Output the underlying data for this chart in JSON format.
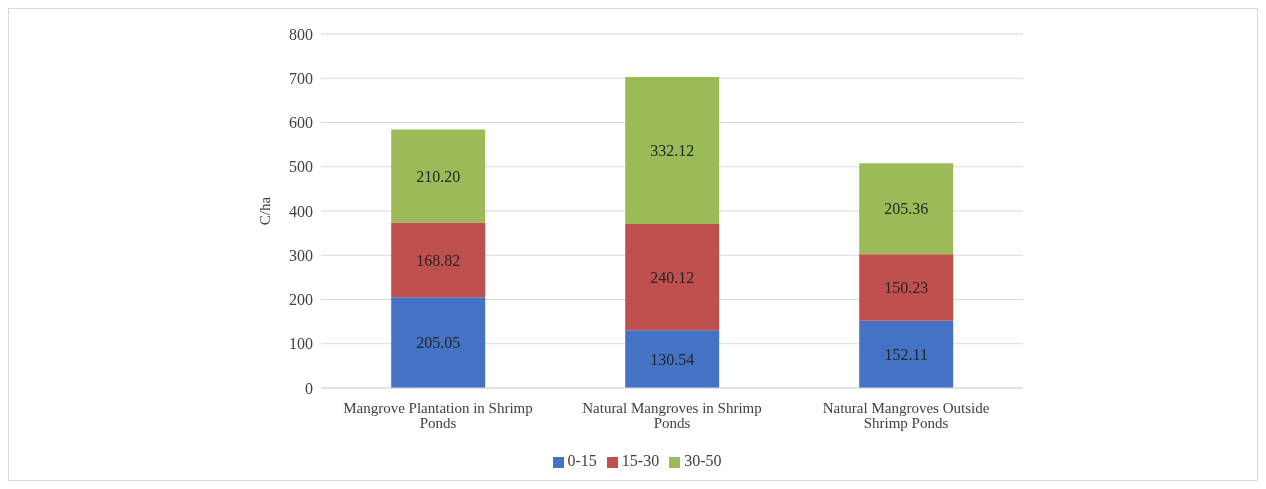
{
  "chart_data": {
    "type": "bar",
    "stacked": true,
    "ylabel": "C/ha",
    "categories": [
      "Mangrove Plantation in Shrimp Ponds",
      "Natural Mangroves in Shrimp Ponds",
      "Natural Mangroves Outside Shrimp Ponds"
    ],
    "series": [
      {
        "name": "0-15",
        "color": "#4472c4",
        "values": [
          205.05,
          130.54,
          152.11
        ],
        "value_labels": [
          "205.05",
          "130.54",
          "152.11"
        ]
      },
      {
        "name": "15-30",
        "color": "#c0504d",
        "values": [
          168.82,
          240.12,
          150.23
        ],
        "value_labels": [
          "168.82",
          "240.12",
          "150.23"
        ]
      },
      {
        "name": "30-50",
        "color": "#9bbb59",
        "values": [
          210.2,
          332.12,
          205.36
        ],
        "value_labels": [
          "210.20",
          "332.12",
          "205.36"
        ]
      }
    ],
    "ylim": [
      0,
      800
    ],
    "yticks": [
      0,
      100,
      200,
      300,
      400,
      500,
      600,
      700,
      800
    ],
    "grid": "y",
    "legend": "bottom"
  }
}
